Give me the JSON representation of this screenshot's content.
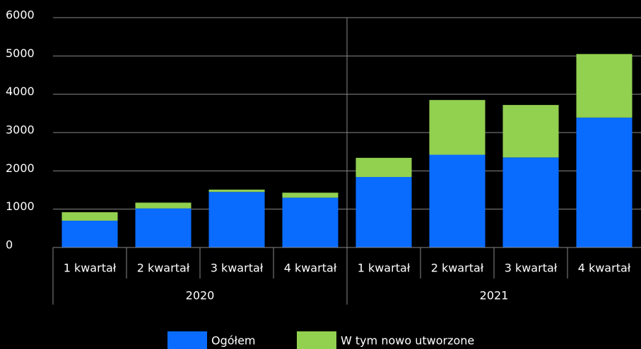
{
  "chart_data": {
    "type": "stacked_bar",
    "categories": [
      "1 kwartał",
      "2 kwartał",
      "3 kwartał",
      "4 kwartał",
      "1 kwartał",
      "2 kwartał",
      "3 kwartał",
      "4 kwartał"
    ],
    "groups": [
      "2020",
      "2021"
    ],
    "series": [
      {
        "name": "Ogółem",
        "color": "#0a6cff",
        "values": [
          700,
          1020,
          1450,
          1300,
          1840,
          2420,
          2350,
          3390
        ]
      },
      {
        "name": "W tym nowo utworzone",
        "color": "#92d050",
        "values": [
          220,
          150,
          60,
          130,
          500,
          1430,
          1370,
          1660
        ]
      }
    ],
    "ylim": [
      0,
      6000
    ],
    "yticks": [
      0,
      1000,
      2000,
      3000,
      4000,
      5000,
      6000
    ],
    "grid": true,
    "legend": "bottom"
  }
}
